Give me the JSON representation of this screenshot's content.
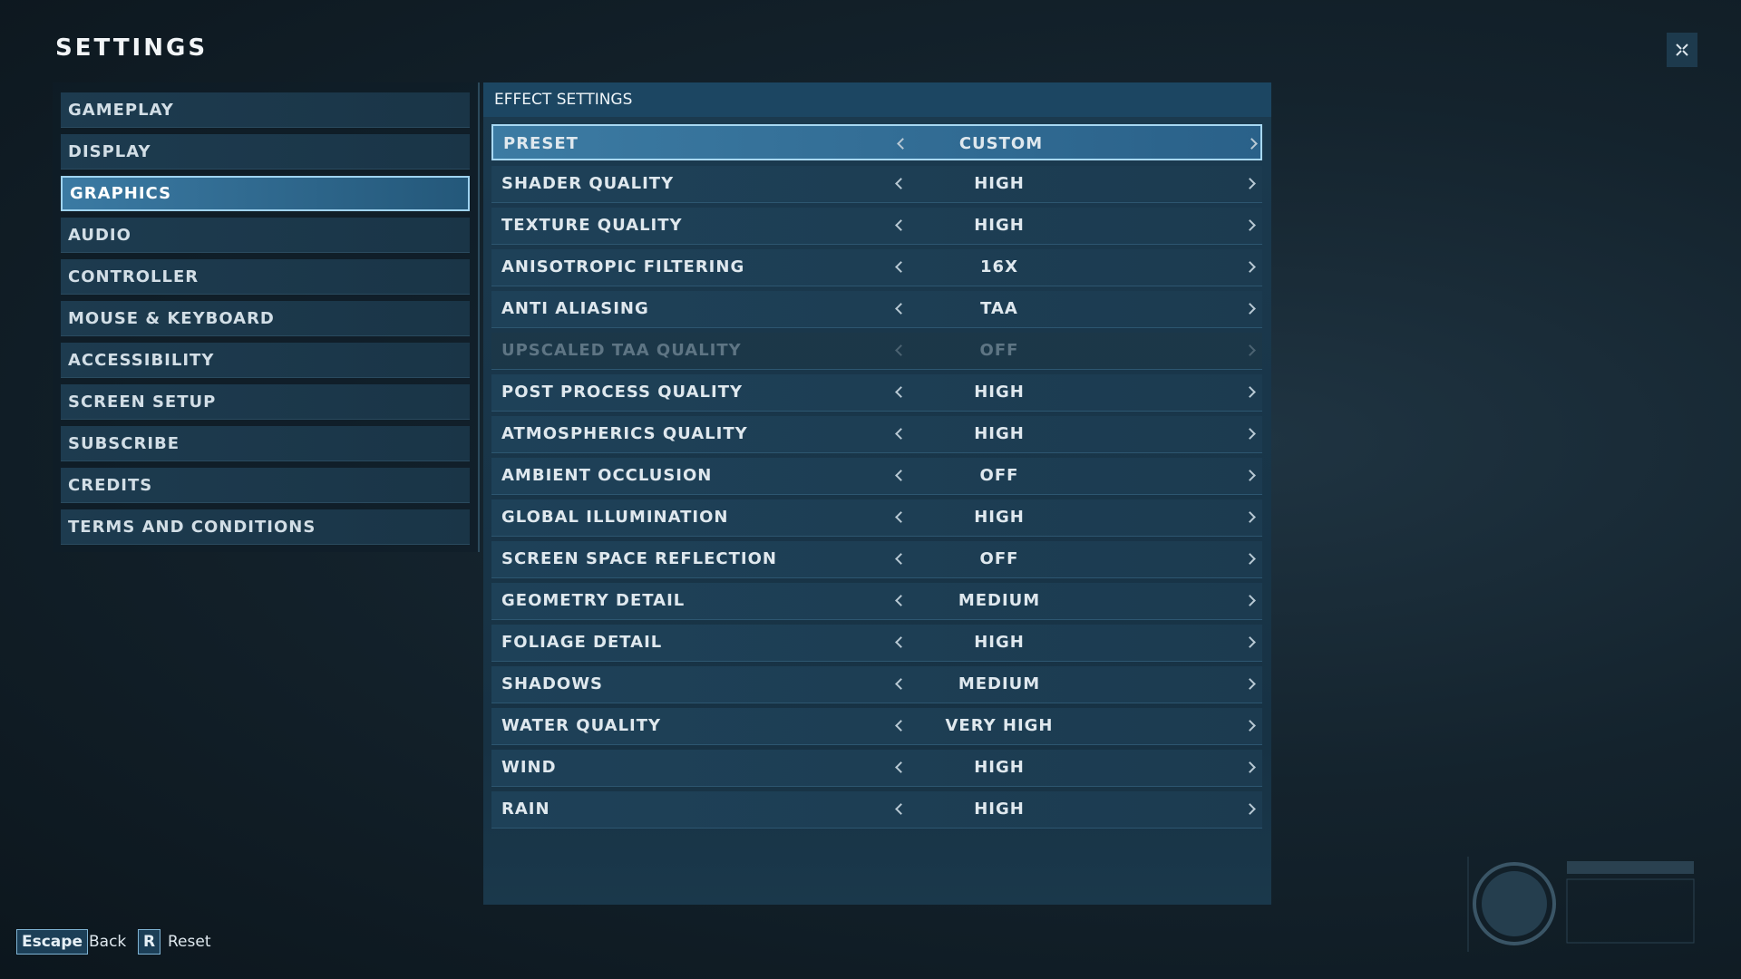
{
  "header": {
    "title": "SETTINGS"
  },
  "sidebar": {
    "items": [
      "GAMEPLAY",
      "DISPLAY",
      "GRAPHICS",
      "AUDIO",
      "CONTROLLER",
      "MOUSE & KEYBOARD",
      "ACCESSIBILITY",
      "SCREEN SETUP",
      "SUBSCRIBE",
      "CREDITS",
      "TERMS AND CONDITIONS"
    ]
  },
  "panel": {
    "title": "EFFECT SETTINGS",
    "rows": [
      {
        "label": "PRESET",
        "value": "CUSTOM"
      },
      {
        "label": "SHADER QUALITY",
        "value": "HIGH"
      },
      {
        "label": "TEXTURE QUALITY",
        "value": "HIGH"
      },
      {
        "label": "ANISOTROPIC FILTERING",
        "value": "16X"
      },
      {
        "label": "ANTI ALIASING",
        "value": "TAA"
      },
      {
        "label": "UPSCALED TAA QUALITY",
        "value": "OFF"
      },
      {
        "label": "POST PROCESS QUALITY",
        "value": "HIGH"
      },
      {
        "label": "ATMOSPHERICS QUALITY",
        "value": "HIGH"
      },
      {
        "label": "AMBIENT OCCLUSION",
        "value": "OFF"
      },
      {
        "label": "GLOBAL ILLUMINATION",
        "value": "HIGH"
      },
      {
        "label": "SCREEN SPACE REFLECTION",
        "value": "OFF"
      },
      {
        "label": "GEOMETRY DETAIL",
        "value": "MEDIUM"
      },
      {
        "label": "FOLIAGE DETAIL",
        "value": "HIGH"
      },
      {
        "label": "SHADOWS",
        "value": "MEDIUM"
      },
      {
        "label": "WATER QUALITY",
        "value": "VERY HIGH"
      },
      {
        "label": "WIND",
        "value": "HIGH"
      },
      {
        "label": "RAIN",
        "value": "HIGH"
      }
    ]
  },
  "footer": {
    "hints": [
      {
        "key": "Escape",
        "action": "Back"
      },
      {
        "key": "R",
        "action": "Reset"
      }
    ]
  }
}
